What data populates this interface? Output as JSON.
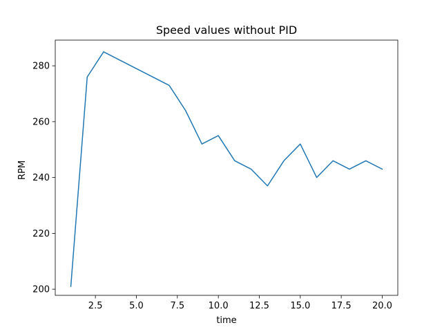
{
  "chart_data": {
    "type": "line",
    "title": "Speed values without PID",
    "xlabel": "time",
    "ylabel": "RPM",
    "xlim": [
      0.05,
      20.95
    ],
    "ylim": [
      197.8,
      289.2
    ],
    "x_ticks": [
      2.5,
      5.0,
      7.5,
      10.0,
      12.5,
      15.0,
      17.5,
      20.0
    ],
    "x_tick_labels": [
      "2.5",
      "5.0",
      "7.5",
      "10.0",
      "12.5",
      "15.0",
      "17.5",
      "20.0"
    ],
    "y_ticks": [
      200,
      220,
      240,
      260,
      280
    ],
    "y_tick_labels": [
      "200",
      "220",
      "240",
      "260",
      "280"
    ],
    "grid": false,
    "series": [
      {
        "color": "#1f77b4",
        "x": [
          1,
          2,
          3,
          4,
          5,
          6,
          7,
          8,
          9,
          10,
          11,
          12,
          13,
          14,
          15,
          16,
          17,
          18,
          19,
          20
        ],
        "y": [
          201,
          276,
          285,
          282,
          279,
          276,
          273,
          264,
          252,
          255,
          246,
          243,
          237,
          246,
          252,
          240,
          246,
          243,
          246,
          243
        ]
      }
    ]
  }
}
